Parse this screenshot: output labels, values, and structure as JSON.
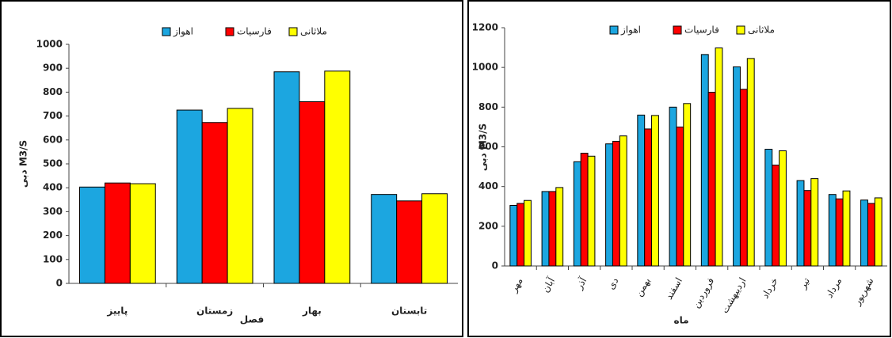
{
  "chart_data": [
    {
      "type": "bar",
      "categories": [
        "پاییز",
        "زمستان",
        "بهار",
        "تابستان"
      ],
      "series": [
        {
          "name": "اهواز",
          "color": "#1ca6e0",
          "values": [
            403,
            725,
            885,
            372
          ]
        },
        {
          "name": "فارسیات",
          "color": "#ff0000",
          "values": [
            420,
            673,
            760,
            345
          ]
        },
        {
          "name": "ملاثانی",
          "color": "#ffff00",
          "values": [
            417,
            732,
            888,
            375
          ]
        }
      ],
      "ylim": [
        0,
        1000
      ],
      "yticks": [
        0,
        100,
        200,
        300,
        400,
        500,
        600,
        700,
        800,
        900,
        1000
      ],
      "y_label": "دبی M3/S",
      "x_label": "فصل",
      "legend": "top"
    },
    {
      "type": "bar",
      "categories": [
        "مهر",
        "آبان",
        "آذر",
        "دی",
        "بهمن",
        "اسفند",
        "فروردین",
        "اردیبهشت",
        "خرداد",
        "تیر",
        "مرداد",
        "شهریور"
      ],
      "series": [
        {
          "name": "اهواز",
          "color": "#1ca6e0",
          "values": [
            305,
            375,
            525,
            615,
            760,
            800,
            1065,
            1003,
            588,
            430,
            360,
            332
          ]
        },
        {
          "name": "فارسیات",
          "color": "#ff0000",
          "values": [
            315,
            375,
            568,
            628,
            690,
            700,
            875,
            890,
            508,
            380,
            338,
            315
          ]
        },
        {
          "name": "ملاثانی",
          "color": "#ffff00",
          "values": [
            330,
            395,
            553,
            655,
            758,
            818,
            1098,
            1045,
            580,
            440,
            378,
            343
          ]
        }
      ],
      "ylim": [
        0,
        1200
      ],
      "yticks": [
        0,
        200,
        400,
        600,
        800,
        1000,
        1200
      ],
      "y_label": "دبی M3/S",
      "x_label": "ماه",
      "legend": "top"
    }
  ]
}
